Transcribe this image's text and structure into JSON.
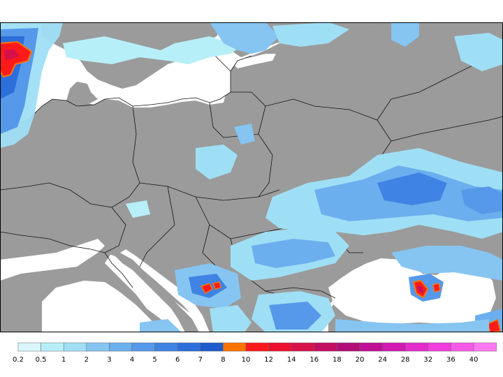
{
  "colors": {
    "land": "#9b9b9b",
    "sea": "#ffffff",
    "border": "#111111"
  },
  "legend": {
    "bins": [
      {
        "label": "0.2",
        "color": "#d9f7fb"
      },
      {
        "label": "0.5",
        "color": "#b7eff8"
      },
      {
        "label": "1",
        "color": "#9fdff5"
      },
      {
        "label": "2",
        "color": "#86c5f2"
      },
      {
        "label": "3",
        "color": "#6cafee"
      },
      {
        "label": "4",
        "color": "#5699ea"
      },
      {
        "label": "5",
        "color": "#3f83e4"
      },
      {
        "label": "6",
        "color": "#2c6fdb"
      },
      {
        "label": "7",
        "color": "#1f5bcc"
      },
      {
        "label": "8",
        "color": "#ff7300"
      },
      {
        "label": "10",
        "color": "#ff1a1a"
      },
      {
        "label": "12",
        "color": "#ee1030"
      },
      {
        "label": "14",
        "color": "#d8104a"
      },
      {
        "label": "16",
        "color": "#c40e62"
      },
      {
        "label": "18",
        "color": "#b20c78"
      },
      {
        "label": "20",
        "color": "#c00f96"
      },
      {
        "label": "24",
        "color": "#d21ab2"
      },
      {
        "label": "28",
        "color": "#e32ccb"
      },
      {
        "label": "32",
        "color": "#f03ddc"
      },
      {
        "label": "36",
        "color": "#f85ae8"
      },
      {
        "label": "40",
        "color": "#ff78f2"
      }
    ]
  }
}
